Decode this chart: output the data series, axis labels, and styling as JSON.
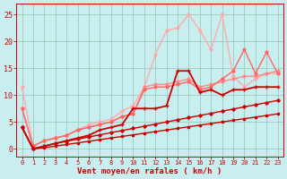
{
  "background_color": "#c8eef0",
  "grid_color": "#99ccbb",
  "xlabel": "Vent moyen/en rafales ( km/h )",
  "xlabel_color": "#cc0000",
  "xlabel_fontsize": 6.5,
  "tick_color": "#cc0000",
  "ytick_fontsize": 6,
  "xtick_fontsize": 5,
  "xlim": [
    -0.5,
    23.5
  ],
  "ylim": [
    -1.5,
    27
  ],
  "yticks": [
    0,
    5,
    10,
    15,
    20,
    25
  ],
  "xticks": [
    0,
    1,
    2,
    3,
    4,
    5,
    6,
    7,
    8,
    9,
    10,
    11,
    12,
    13,
    14,
    15,
    16,
    17,
    18,
    19,
    20,
    21,
    22,
    23
  ],
  "lines": [
    {
      "x": [
        0,
        1,
        2,
        3,
        4,
        5,
        6,
        7,
        8,
        9,
        10,
        11,
        12,
        13,
        14,
        15,
        16,
        17,
        18,
        19,
        20,
        21,
        22,
        23
      ],
      "y": [
        4,
        0,
        0.2,
        0.5,
        0.8,
        1.1,
        1.4,
        1.7,
        2.0,
        2.3,
        2.6,
        2.9,
        3.2,
        3.5,
        3.8,
        4.1,
        4.4,
        4.7,
        5.0,
        5.3,
        5.6,
        5.9,
        6.2,
        6.5
      ],
      "color": "#cc0000",
      "lw": 1.0,
      "marker": "s",
      "ms": 1.8,
      "zorder": 5
    },
    {
      "x": [
        0,
        1,
        2,
        3,
        4,
        5,
        6,
        7,
        8,
        9,
        10,
        11,
        12,
        13,
        14,
        15,
        16,
        17,
        18,
        19,
        20,
        21,
        22,
        23
      ],
      "y": [
        4,
        0,
        0.5,
        1.0,
        1.4,
        1.8,
        2.2,
        2.6,
        3.0,
        3.4,
        3.8,
        4.2,
        4.6,
        5.0,
        5.4,
        5.8,
        6.2,
        6.6,
        7.0,
        7.4,
        7.8,
        8.2,
        8.6,
        9.0
      ],
      "color": "#cc0000",
      "lw": 1.0,
      "marker": "D",
      "ms": 1.8,
      "zorder": 4
    },
    {
      "x": [
        0,
        1,
        2,
        3,
        4,
        5,
        6,
        7,
        8,
        9,
        10,
        11,
        12,
        13,
        14,
        15,
        16,
        17,
        18,
        19,
        20,
        21,
        22,
        23
      ],
      "y": [
        4,
        0,
        0.5,
        1.0,
        1.5,
        2.0,
        2.5,
        3.5,
        4.0,
        4.5,
        7.5,
        7.5,
        7.5,
        8.0,
        14.5,
        14.5,
        10.5,
        11.0,
        10.0,
        11.0,
        11.0,
        11.5,
        11.5,
        11.5
      ],
      "color": "#cc0000",
      "lw": 1.3,
      "marker": "+",
      "ms": 3.5,
      "zorder": 6
    },
    {
      "x": [
        0,
        1,
        2,
        3,
        4,
        5,
        6,
        7,
        8,
        9,
        10,
        11,
        12,
        13,
        14,
        15,
        16,
        17,
        18,
        19,
        20,
        21,
        22,
        23
      ],
      "y": [
        7.5,
        0.5,
        1.5,
        2.0,
        2.5,
        3.5,
        4.0,
        4.5,
        5.0,
        6.0,
        6.5,
        11.0,
        11.5,
        11.5,
        12.0,
        12.5,
        11.0,
        11.5,
        13.0,
        14.5,
        18.5,
        14.0,
        18.0,
        14.0
      ],
      "color": "#ff6666",
      "lw": 1.0,
      "marker": "o",
      "ms": 2.0,
      "zorder": 3
    },
    {
      "x": [
        0,
        1,
        2,
        3,
        4,
        5,
        6,
        7,
        8,
        9,
        10,
        11,
        12,
        13,
        14,
        15,
        16,
        17,
        18,
        19,
        20,
        21,
        22,
        23
      ],
      "y": [
        11.5,
        0.5,
        1.5,
        2.0,
        2.5,
        3.5,
        4.5,
        5.0,
        5.5,
        7.0,
        8.0,
        11.5,
        17.5,
        22.0,
        22.5,
        25.0,
        22.0,
        18.5,
        25.0,
        13.5,
        11.5,
        13.0,
        14.0,
        14.0
      ],
      "color": "#ffaaaa",
      "lw": 1.0,
      "marker": "o",
      "ms": 2.0,
      "zorder": 2
    },
    {
      "x": [
        0,
        1,
        2,
        3,
        4,
        5,
        6,
        7,
        8,
        9,
        10,
        11,
        12,
        13,
        14,
        15,
        16,
        17,
        18,
        19,
        20,
        21,
        22,
        23
      ],
      "y": [
        7.5,
        0.5,
        1.5,
        2.0,
        2.5,
        3.5,
        4.0,
        4.5,
        5.0,
        6.0,
        6.5,
        11.5,
        12.0,
        12.0,
        12.5,
        13.0,
        11.5,
        12.0,
        12.5,
        13.0,
        13.5,
        13.5,
        14.0,
        14.5
      ],
      "color": "#ff8888",
      "lw": 1.0,
      "marker": "o",
      "ms": 2.0,
      "zorder": 2
    }
  ]
}
